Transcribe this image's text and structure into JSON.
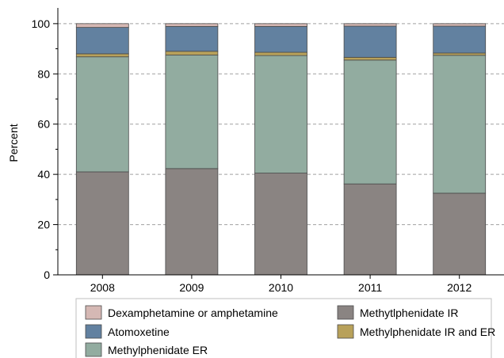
{
  "chart_data": {
    "type": "bar",
    "stacked": true,
    "title": "",
    "xlabel": "",
    "ylabel": "Percent",
    "ylim": [
      0,
      105
    ],
    "yticks": [
      0,
      20,
      40,
      60,
      80,
      100
    ],
    "grid": "horizontal dashed",
    "legend_position": "bottom",
    "categories": [
      "2008",
      "2009",
      "2010",
      "2011",
      "2012"
    ],
    "series": [
      {
        "name": "Methytlphenidate IR",
        "color": "#8a8482",
        "values": [
          41,
          42.3,
          40.5,
          36.2,
          32.5
        ]
      },
      {
        "name": "Methylphenidate ER",
        "color": "#92aca0",
        "values": [
          45.8,
          45.2,
          46.8,
          49.3,
          54.9
        ]
      },
      {
        "name": "Methylphenidate IR and ER",
        "color": "#b8a15a",
        "values": [
          1.2,
          1.5,
          1.3,
          1.1,
          0.9
        ]
      },
      {
        "name": "Atomoxetine",
        "color": "#6281a0",
        "values": [
          10.5,
          9.9,
          10.3,
          12.4,
          10.7
        ]
      },
      {
        "name": "Dexamphetamine or amphetamine",
        "color": "#d5b8b4",
        "values": [
          1.5,
          1.1,
          1.1,
          1.0,
          1.0
        ]
      }
    ],
    "legend_order": [
      "Dexamphetamine or amphetamine",
      "Atomoxetine",
      "Methylphenidate ER",
      "Methytlphenidate IR",
      "Methylphenidate IR and ER"
    ]
  }
}
